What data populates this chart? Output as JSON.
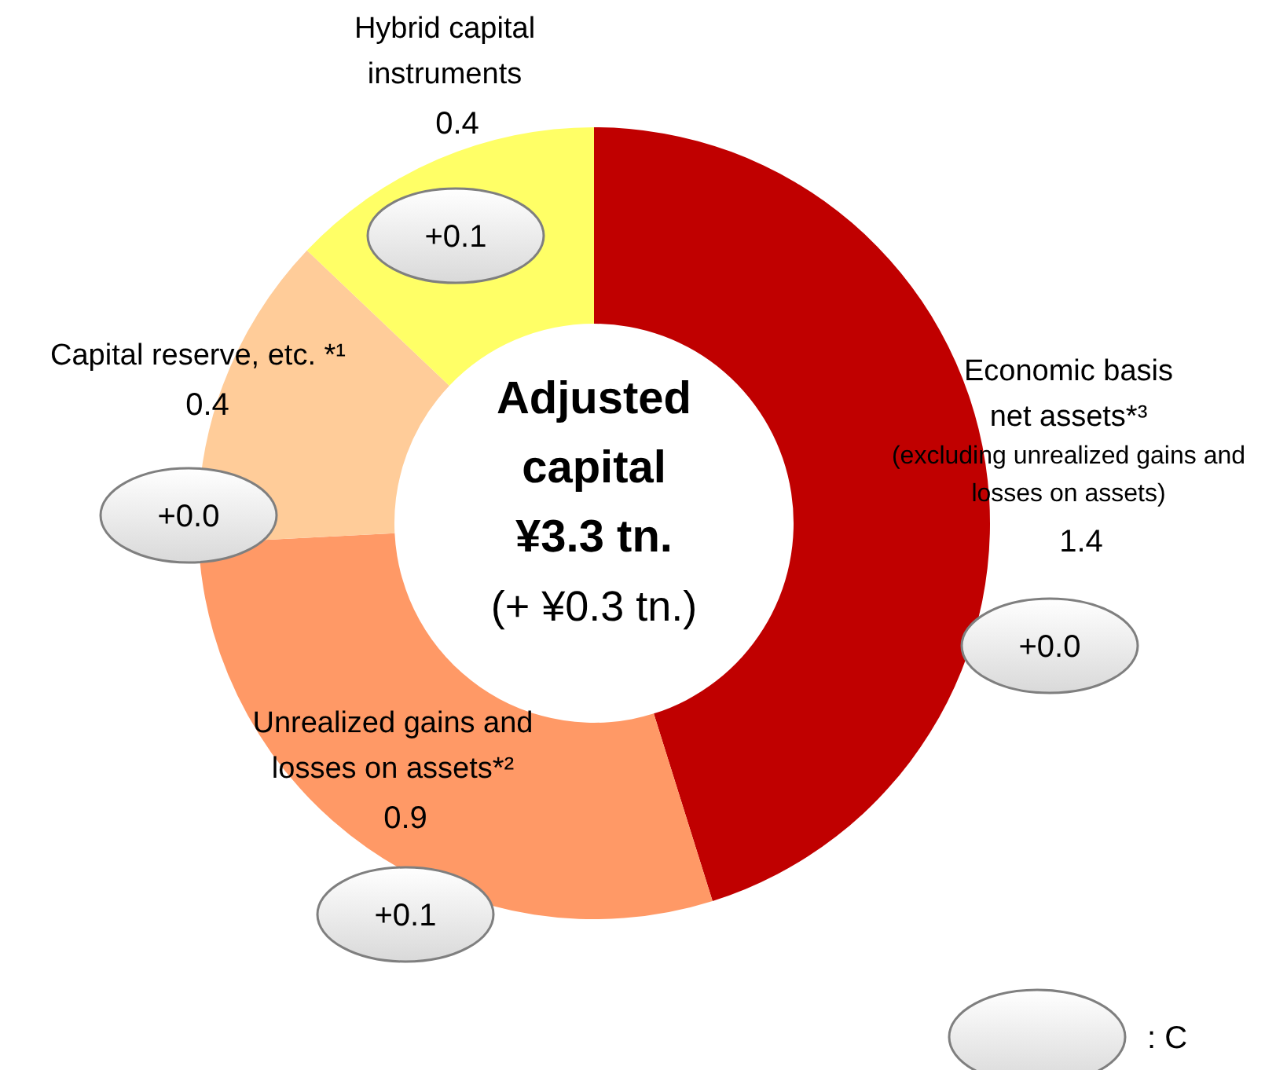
{
  "chart_data": {
    "type": "donut",
    "title": "Adjusted\ncapital\n¥3.3 tn.",
    "subtitle": "(+ ¥0.3 tn.)",
    "categories": [
      "Economic basis\nnet assets*³\n(excluding unrealized gains and\nlosses on assets)",
      "Unrealized gains and\nlosses on assets*²",
      "Capital reserve, etc. *¹",
      "Hybrid capital\ninstruments"
    ],
    "values": [
      1.4,
      0.9,
      0.4,
      0.4
    ],
    "colors": [
      "#c00000",
      "#ff9966",
      "#ffcc99",
      "#ffff66"
    ],
    "data_labels": true,
    "annotations": [
      "+0.0",
      "+0.1",
      "+0.0",
      "+0.1",
      ": C"
    ]
  }
}
